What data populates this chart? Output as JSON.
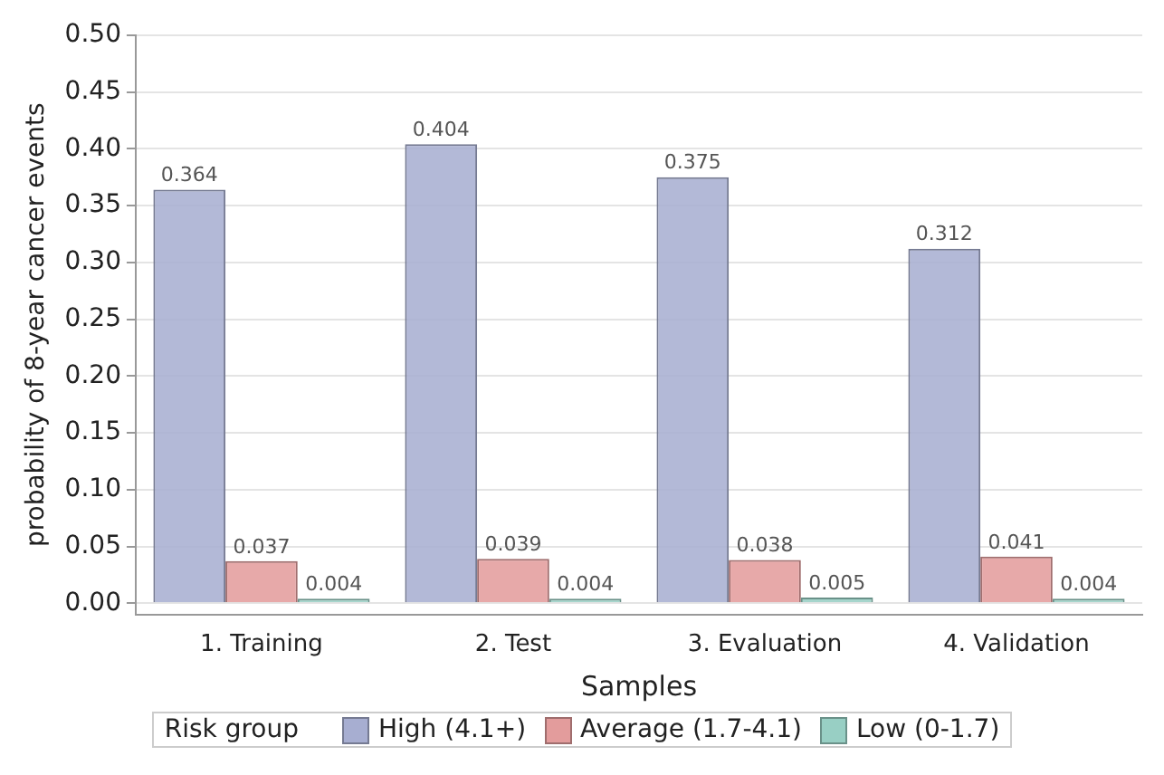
{
  "chart_data": {
    "type": "bar",
    "xlabel": "Samples",
    "ylabel": "probability of 8-year cancer events",
    "legend_title": "Risk group",
    "categories": [
      "1. Training",
      "2. Test",
      "3. Evaluation",
      "4. Validation"
    ],
    "series": [
      {
        "name": "High (4.1+)",
        "color": "#a7aed1",
        "values": [
          0.364,
          0.404,
          0.375,
          0.312
        ]
      },
      {
        "name": "Average (1.7-4.1)",
        "color": "#e39c9c",
        "values": [
          0.037,
          0.039,
          0.038,
          0.041
        ]
      },
      {
        "name": "Low (0-1.7)",
        "color": "#98cfc4",
        "values": [
          0.004,
          0.004,
          0.005,
          0.004
        ]
      }
    ],
    "ylim": [
      -0.01,
      0.5
    ],
    "yticks": [
      {
        "value": 0,
        "label": "0.00"
      },
      {
        "value": 0.05,
        "label": "0.05"
      },
      {
        "value": 0.1,
        "label": "0.10"
      },
      {
        "value": 0.15,
        "label": "0.15"
      },
      {
        "value": 0.2,
        "label": "0.20"
      },
      {
        "value": 0.25,
        "label": "0.25"
      },
      {
        "value": 0.3,
        "label": "0.30"
      },
      {
        "value": 0.35,
        "label": "0.35"
      },
      {
        "value": 0.4,
        "label": "0.40"
      },
      {
        "value": 0.45,
        "label": "0.45"
      },
      {
        "value": 0.5,
        "label": "0.50"
      }
    ],
    "grid": "y",
    "legend": "bottom",
    "data_labels": true
  }
}
